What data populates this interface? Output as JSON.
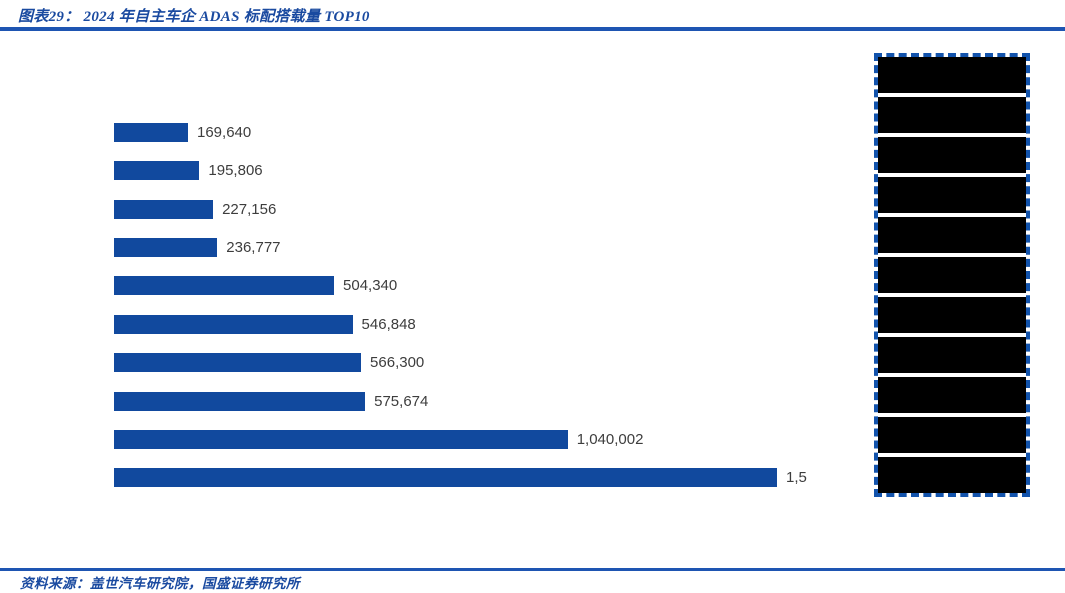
{
  "header": {
    "title": "图表29：  2024 年自主车企 ADAS 标配搭载量 TOP10"
  },
  "footer": {
    "source": "资料来源：盖世汽车研究院，国盛证券研究所"
  },
  "colors": {
    "bar": "#11499E",
    "rule": "#1E55B2",
    "title_text": "#1A4AA0",
    "panel_border": "#1253AC",
    "panel_block": "#000000",
    "value_label": "#3D3D3D"
  },
  "chart_data": {
    "type": "bar",
    "orientation": "horizontal",
    "title": "2024 年自主车企 ADAS 标配搭载量 TOP10",
    "xlim": [
      0,
      1600000
    ],
    "values": [
      169640,
      195806,
      227156,
      236777,
      504340,
      546848,
      566300,
      575674,
      1040002,
      1519770
    ],
    "value_labels": [
      "169,640",
      "195,806",
      "227,156",
      "236,777",
      "504,340",
      "546,848",
      "566,300",
      "575,674",
      "1,040,002",
      "1,5"
    ],
    "last_label_clipped": true,
    "last_value_estimated_from_bar_length": true,
    "category_labels_redacted": true,
    "grid": false,
    "legend_position": "right"
  },
  "side_panel": {
    "redacted_rows": 11
  }
}
